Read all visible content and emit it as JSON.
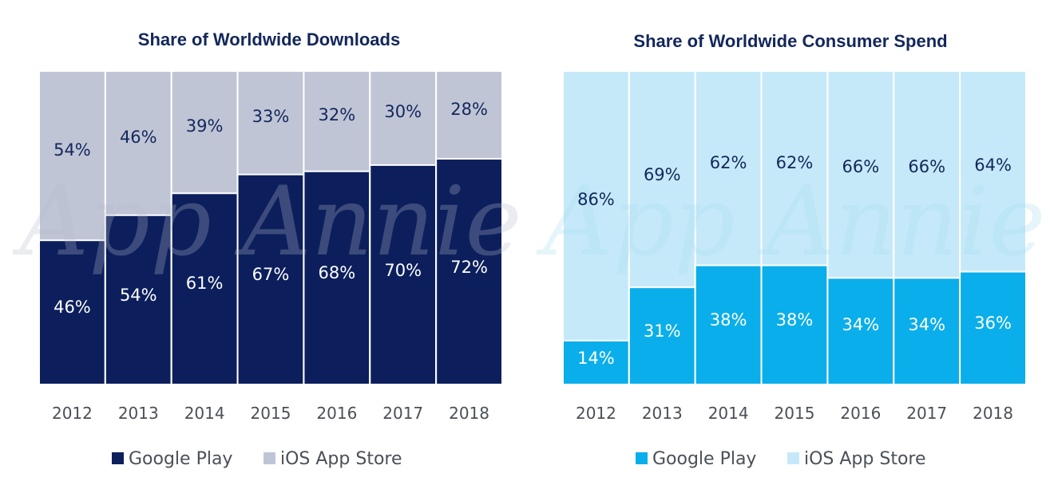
{
  "chart_data": [
    {
      "type": "bar",
      "stacked": true,
      "title": "Share of Worldwide Downloads",
      "categories": [
        "2012",
        "2013",
        "2014",
        "2015",
        "2016",
        "2017",
        "2018"
      ],
      "series": [
        {
          "name": "Google Play",
          "values": [
            46,
            54,
            61,
            67,
            68,
            70,
            72
          ],
          "labels": [
            "46%",
            "54%",
            "61%",
            "67%",
            "68%",
            "70%",
            "72%"
          ],
          "color": "#0c1f5c",
          "label_color": "#ffffff"
        },
        {
          "name": "iOS App Store",
          "values": [
            54,
            46,
            39,
            33,
            32,
            30,
            28
          ],
          "labels": [
            "54%",
            "46%",
            "39%",
            "33%",
            "32%",
            "30%",
            "28%"
          ],
          "color": "#c0c5d6",
          "label_color": "#13275b"
        }
      ],
      "ylim": [
        0,
        100
      ],
      "xlabel": "",
      "ylabel": "",
      "grid": false,
      "legend_position": "bottom"
    },
    {
      "type": "bar",
      "stacked": true,
      "title": "Share of Worldwide Consumer Spend",
      "categories": [
        "2012",
        "2013",
        "2014",
        "2015",
        "2016",
        "2017",
        "2018"
      ],
      "series": [
        {
          "name": "Google Play",
          "values": [
            14,
            31,
            38,
            38,
            34,
            34,
            36
          ],
          "labels": [
            "14%",
            "31%",
            "38%",
            "38%",
            "34%",
            "34%",
            "36%"
          ],
          "color": "#0aaeea",
          "label_color": "#ffffff"
        },
        {
          "name": "iOS App Store",
          "values": [
            86,
            69,
            62,
            62,
            66,
            66,
            64
          ],
          "labels": [
            "86%",
            "69%",
            "62%",
            "62%",
            "66%",
            "66%",
            "64%"
          ],
          "color": "#c5e9f9",
          "label_color": "#13275b"
        }
      ],
      "ylim": [
        0,
        100
      ],
      "xlabel": "",
      "ylabel": "",
      "grid": false,
      "legend_position": "bottom"
    }
  ],
  "watermark": "App Annie"
}
